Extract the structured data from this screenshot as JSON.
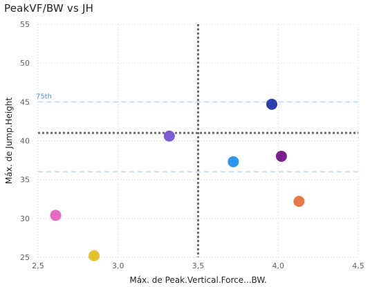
{
  "title": "PeakVF/BW vs JH",
  "chart_data": {
    "type": "scatter",
    "title": "PeakVF/BW vs JH",
    "xlabel": "Máx. de Peak.Vertical.Force...BW.",
    "ylabel": "Máx. de Jump.Height",
    "xlim": [
      2.5,
      4.5
    ],
    "ylim": [
      25,
      55
    ],
    "x_ticks": [
      "2,5",
      "3,0",
      "3,5",
      "4,0",
      "4,5"
    ],
    "x_tick_values": [
      2.5,
      3.0,
      3.5,
      4.0,
      4.5
    ],
    "y_ticks": [
      "25",
      "30",
      "35",
      "40",
      "45",
      "50",
      "55"
    ],
    "y_tick_values": [
      25,
      30,
      35,
      40,
      45,
      50,
      55
    ],
    "grid": true,
    "points": [
      {
        "x": 2.61,
        "y": 30.4,
        "color": "#e66ac0"
      },
      {
        "x": 2.85,
        "y": 25.2,
        "color": "#e6c12e"
      },
      {
        "x": 3.32,
        "y": 40.6,
        "color": "#7b5bd1"
      },
      {
        "x": 3.72,
        "y": 37.3,
        "color": "#2e96f0"
      },
      {
        "x": 3.96,
        "y": 44.7,
        "color": "#2b3fb0"
      },
      {
        "x": 4.02,
        "y": 38.0,
        "color": "#7a1f8e"
      },
      {
        "x": 4.13,
        "y": 32.2,
        "color": "#e8784a"
      }
    ],
    "reference_lines": [
      {
        "axis": "x",
        "value": 3.5,
        "style": "dotted",
        "color": "#6e6e6e"
      },
      {
        "axis": "y",
        "value": 41.0,
        "style": "dotted",
        "color": "#6e6e6e"
      },
      {
        "axis": "y",
        "value": 45.0,
        "style": "dashed",
        "color": "#c5ddf3",
        "label": "75th"
      },
      {
        "axis": "y",
        "value": 36.0,
        "style": "dashed",
        "color": "#c5ddf3"
      }
    ]
  }
}
